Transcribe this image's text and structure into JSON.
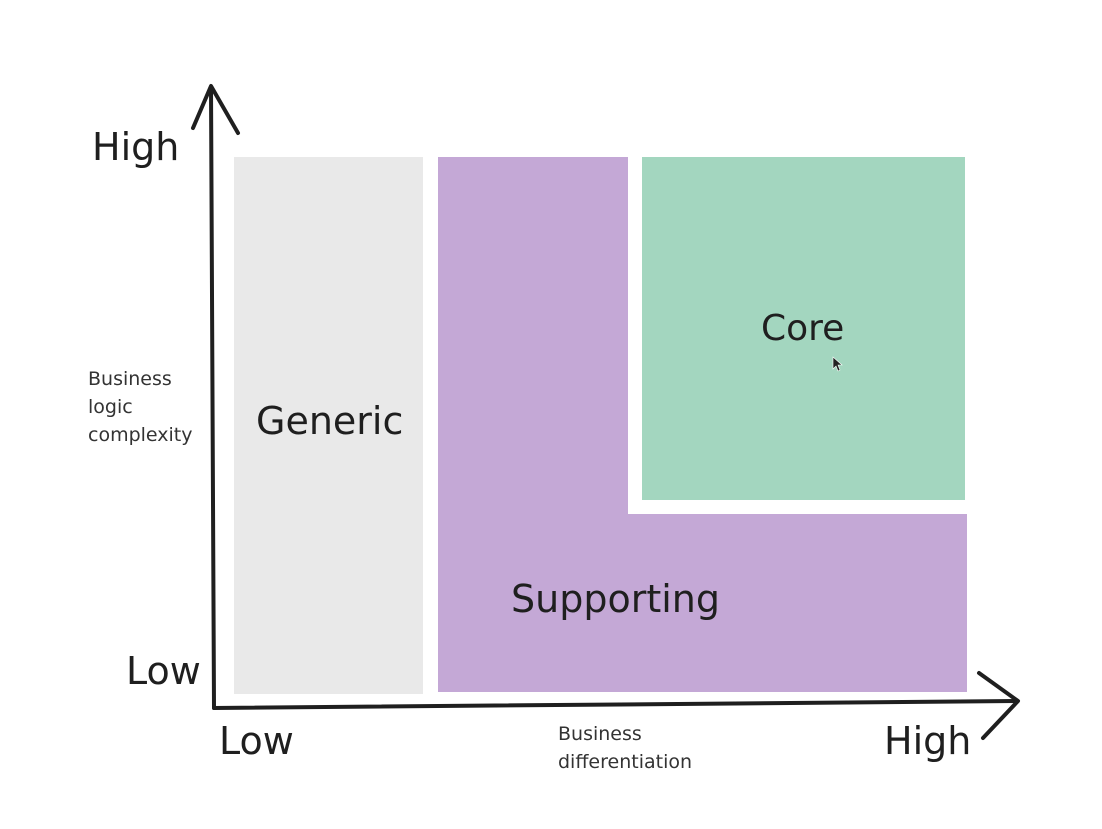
{
  "axes": {
    "y_high_label": "High",
    "y_low_label": "Low",
    "x_low_label": "Low",
    "x_high_label": "High",
    "y_title_lines": [
      "Business",
      "logic",
      "complexity"
    ],
    "x_title_lines": [
      "Business",
      "differentiation"
    ]
  },
  "regions": {
    "generic": {
      "label": "Generic",
      "color": "#e9e9e9"
    },
    "supporting": {
      "label": "Supporting",
      "color": "#c4a8d6"
    },
    "core": {
      "label": "Core",
      "color": "#a3d6bf"
    }
  },
  "colors": {
    "axis": "#1f1f1f",
    "background": "#ffffff"
  }
}
